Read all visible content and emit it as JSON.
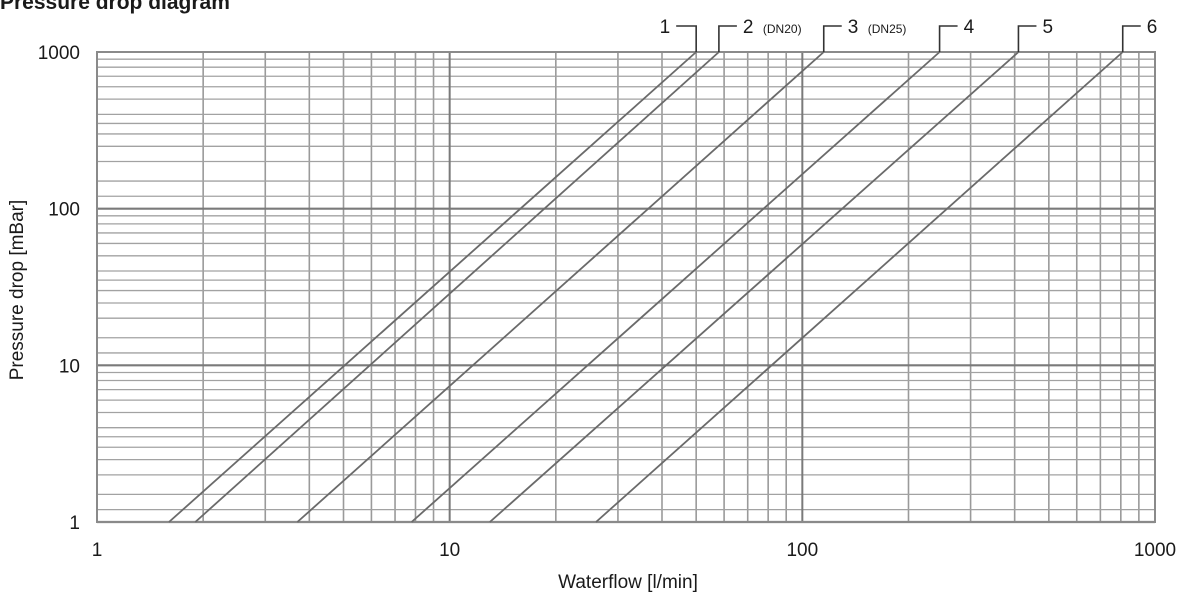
{
  "title": "Pressure drop diagram",
  "chart_data": {
    "type": "line",
    "title": "Pressure drop diagram",
    "xlabel": "Waterflow [l/min]",
    "ylabel": "Pressure drop [mBar]",
    "xscale": "log",
    "yscale": "log",
    "xlim": [
      1,
      1000
    ],
    "ylim": [
      1,
      1000
    ],
    "grid": true,
    "x_tick_labels": [
      "1",
      "10",
      "100",
      "1000"
    ],
    "y_tick_labels": [
      "1",
      "10",
      "100",
      "1000"
    ],
    "x_ticks": [
      1,
      10,
      100,
      1000
    ],
    "y_ticks": [
      1,
      10,
      100,
      1000
    ],
    "series": [
      {
        "name": "1",
        "note": "",
        "x": [
          1.6,
          50
        ],
        "y": [
          1,
          1000
        ]
      },
      {
        "name": "2",
        "note": "(DN20)",
        "x": [
          1.9,
          58
        ],
        "y": [
          1,
          1000
        ]
      },
      {
        "name": "3",
        "note": "(DN25)",
        "x": [
          3.7,
          115
        ],
        "y": [
          1,
          1000
        ]
      },
      {
        "name": "4",
        "note": "",
        "x": [
          7.8,
          245
        ],
        "y": [
          1,
          1000
        ]
      },
      {
        "name": "5",
        "note": "",
        "x": [
          13,
          410
        ],
        "y": [
          1,
          1000
        ]
      },
      {
        "name": "6",
        "note": "",
        "x": [
          26,
          810
        ],
        "y": [
          1,
          1000
        ]
      }
    ]
  }
}
